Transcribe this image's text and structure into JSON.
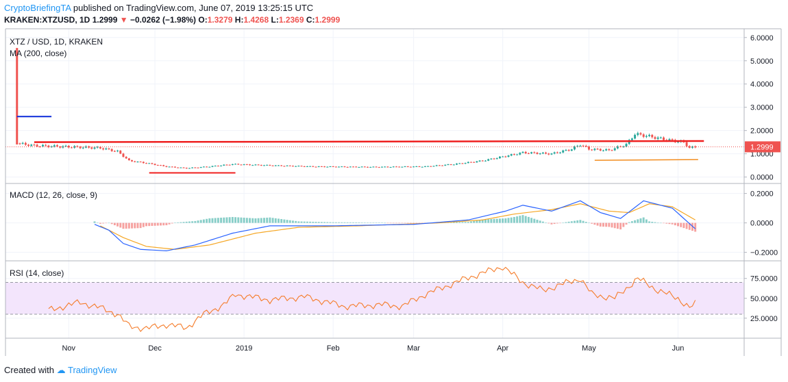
{
  "header": {
    "author": "CryptoBriefingTA",
    "published": "published on TradingView.com, June 07, 2019 13:25:15 UTC",
    "symbol": "KRAKEN:XTZUSD, 1D",
    "last": "1.2999",
    "change": "−0.0262 (−1.98%)",
    "o_label": "O:",
    "o_value": "1.3279",
    "h_label": "H:",
    "h_value": "1.4268",
    "l_label": "L:",
    "l_value": "1.2369",
    "c_label": "C:",
    "c_value": "1.2999",
    "down_arrow": "▼"
  },
  "footer": {
    "created_with": "Created with",
    "brand": "TradingView"
  },
  "colors": {
    "up": "#26a69a",
    "down": "#ef5350",
    "macd": "#2962ff",
    "signal": "#f5a623",
    "rsi": "#f57c2a",
    "rsi_band": "#f3e5fc",
    "annot_red": "#ef1f1f",
    "annot_blue": "#0b2ad9",
    "annot_orange": "#f28c1e",
    "price_badge": "#ef5350"
  },
  "chart_data": [
    {
      "type": "candlestick",
      "title": "XTZ / USD, 1D, KRAKEN",
      "overlay": "MA (200, close)",
      "ylim": [
        -0.1,
        6.2
      ],
      "yticks": [
        "6.0000",
        "5.0000",
        "4.0000",
        "3.0000",
        "2.0000",
        "1.0000",
        "0.0000"
      ],
      "ytick_values": [
        6,
        5,
        4,
        3,
        2,
        1,
        0
      ],
      "last_price_label": "1.2999",
      "x_labels": [
        "Nov",
        "Dec",
        "2019",
        "Feb",
        "Mar",
        "Apr",
        "May",
        "Jun"
      ],
      "x_label_dates": [
        "2018-11-01",
        "2018-12-01",
        "2019-01-01",
        "2019-02-01",
        "2019-03-01",
        "2019-04-01",
        "2019-05-01",
        "2019-06-01"
      ],
      "x_range": [
        "2018-10-10",
        "2019-06-24"
      ],
      "close_anchors": [
        [
          "2018-10-14",
          1.45
        ],
        [
          "2018-10-20",
          1.35
        ],
        [
          "2018-11-01",
          1.3
        ],
        [
          "2018-11-12",
          1.25
        ],
        [
          "2018-11-18",
          1.1
        ],
        [
          "2018-11-22",
          0.7
        ],
        [
          "2018-11-28",
          0.6
        ],
        [
          "2018-12-05",
          0.45
        ],
        [
          "2018-12-12",
          0.38
        ],
        [
          "2018-12-20",
          0.45
        ],
        [
          "2018-12-28",
          0.55
        ],
        [
          "2019-01-10",
          0.5
        ],
        [
          "2019-01-25",
          0.45
        ],
        [
          "2019-02-15",
          0.43
        ],
        [
          "2019-03-05",
          0.45
        ],
        [
          "2019-03-15",
          0.55
        ],
        [
          "2019-03-25",
          0.7
        ],
        [
          "2019-04-02",
          0.9
        ],
        [
          "2019-04-08",
          1.05
        ],
        [
          "2019-04-18",
          1.0
        ],
        [
          "2019-04-25",
          1.2
        ],
        [
          "2019-04-28",
          1.4
        ],
        [
          "2019-05-01",
          1.2
        ],
        [
          "2019-05-08",
          1.15
        ],
        [
          "2019-05-14",
          1.4
        ],
        [
          "2019-05-17",
          1.85
        ],
        [
          "2019-05-22",
          1.75
        ],
        [
          "2019-05-28",
          1.6
        ],
        [
          "2019-06-03",
          1.5
        ],
        [
          "2019-06-05",
          1.25
        ],
        [
          "2019-06-07",
          1.3
        ]
      ],
      "annotations": {
        "resistance_line": {
          "from": [
            "2018-10-20",
            1.5
          ],
          "to": [
            "2019-06-10",
            1.55
          ]
        },
        "support_line": {
          "from": [
            "2018-11-29",
            0.18
          ],
          "to": [
            "2018-12-29",
            0.18
          ]
        },
        "blue_line": {
          "from": [
            "2018-10-14",
            2.6
          ],
          "to": [
            "2018-10-26",
            2.6
          ]
        },
        "orange_line": {
          "from": [
            "2019-05-03",
            0.72
          ],
          "to": [
            "2019-06-08",
            0.75
          ]
        },
        "spike": {
          "date": "2018-10-14",
          "high": 5.55,
          "low": 1.4
        },
        "price_dotted": 1.2999
      }
    },
    {
      "type": "line",
      "title": "MACD (12, 26, close, 9)",
      "ylim": [
        -0.23,
        0.24
      ],
      "yticks": [
        "0.2000",
        "0.0000",
        "−0.2000"
      ],
      "ytick_values": [
        0.2,
        0,
        -0.2
      ],
      "macd_anchors": [
        [
          "2018-11-10",
          -0.01
        ],
        [
          "2018-11-15",
          -0.05
        ],
        [
          "2018-11-20",
          -0.14
        ],
        [
          "2018-11-26",
          -0.18
        ],
        [
          "2018-12-05",
          -0.19
        ],
        [
          "2018-12-15",
          -0.15
        ],
        [
          "2018-12-28",
          -0.07
        ],
        [
          "2019-01-10",
          -0.02
        ],
        [
          "2019-02-01",
          -0.02
        ],
        [
          "2019-03-01",
          -0.01
        ],
        [
          "2019-03-20",
          0.02
        ],
        [
          "2019-04-02",
          0.08
        ],
        [
          "2019-04-08",
          0.12
        ],
        [
          "2019-04-18",
          0.08
        ],
        [
          "2019-04-28",
          0.15
        ],
        [
          "2019-05-05",
          0.07
        ],
        [
          "2019-05-12",
          0.03
        ],
        [
          "2019-05-20",
          0.15
        ],
        [
          "2019-05-30",
          0.1
        ],
        [
          "2019-06-07",
          -0.04
        ]
      ],
      "signal_anchors": [
        [
          "2018-11-12",
          -0.02
        ],
        [
          "2018-11-20",
          -0.1
        ],
        [
          "2018-11-28",
          -0.16
        ],
        [
          "2018-12-08",
          -0.18
        ],
        [
          "2018-12-20",
          -0.15
        ],
        [
          "2019-01-05",
          -0.07
        ],
        [
          "2019-01-20",
          -0.03
        ],
        [
          "2019-02-10",
          -0.02
        ],
        [
          "2019-03-10",
          0.0
        ],
        [
          "2019-03-25",
          0.02
        ],
        [
          "2019-04-05",
          0.06
        ],
        [
          "2019-04-18",
          0.09
        ],
        [
          "2019-04-28",
          0.13
        ],
        [
          "2019-05-08",
          0.08
        ],
        [
          "2019-05-15",
          0.07
        ],
        [
          "2019-05-22",
          0.13
        ],
        [
          "2019-05-30",
          0.11
        ],
        [
          "2019-06-07",
          0.02
        ]
      ]
    },
    {
      "type": "line",
      "title": "RSI (14, close)",
      "ylim": [
        5,
        92
      ],
      "yticks": [
        "75.0000",
        "50.0000",
        "25.0000"
      ],
      "ytick_values": [
        75,
        50,
        25
      ],
      "band": [
        30,
        70
      ],
      "rsi_anchors": [
        [
          "2018-10-25",
          35
        ],
        [
          "2018-11-05",
          45
        ],
        [
          "2018-11-12",
          38
        ],
        [
          "2018-11-18",
          30
        ],
        [
          "2018-11-22",
          15
        ],
        [
          "2018-11-28",
          12
        ],
        [
          "2018-12-05",
          17
        ],
        [
          "2018-12-12",
          13
        ],
        [
          "2018-12-18",
          30
        ],
        [
          "2018-12-25",
          42
        ],
        [
          "2018-12-29",
          55
        ],
        [
          "2019-01-10",
          48
        ],
        [
          "2019-01-22",
          52
        ],
        [
          "2019-02-05",
          40
        ],
        [
          "2019-02-18",
          42
        ],
        [
          "2019-02-25",
          40
        ],
        [
          "2019-03-05",
          55
        ],
        [
          "2019-03-10",
          62
        ],
        [
          "2019-03-20",
          76
        ],
        [
          "2019-04-01",
          90
        ],
        [
          "2019-04-08",
          70
        ],
        [
          "2019-04-15",
          60
        ],
        [
          "2019-04-28",
          75
        ],
        [
          "2019-05-02",
          55
        ],
        [
          "2019-05-10",
          50
        ],
        [
          "2019-05-18",
          75
        ],
        [
          "2019-05-25",
          60
        ],
        [
          "2019-06-01",
          50
        ],
        [
          "2019-06-05",
          38
        ],
        [
          "2019-06-07",
          43
        ]
      ]
    }
  ]
}
